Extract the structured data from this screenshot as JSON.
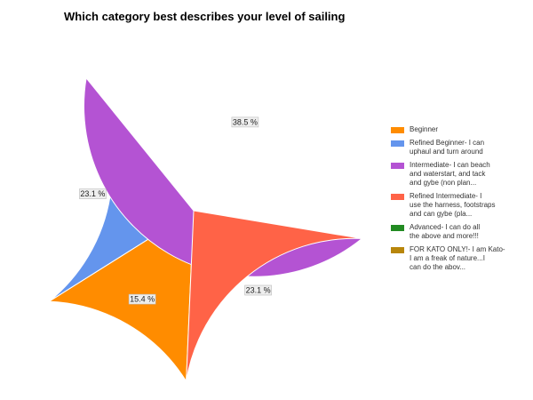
{
  "chart_data": {
    "type": "pie",
    "title": "Which category best describes your level of sailing",
    "categories": [
      "Beginner",
      "Refined Beginner- I can uphaul and turn around",
      "Intermediate- I can beach and waterstart, and tack and gybe (non plan...",
      "Refined Intermediate- I use the harness, footstraps and can gybe (pla...",
      "Advanced- I can do all the above and more!!!",
      "FOR KATO ONLY!- I am Kato- I am a freak of nature...I can do the abov..."
    ],
    "values": [
      15.4,
      23.1,
      38.5,
      23.1,
      0,
      0
    ],
    "value_labels": [
      "15.4 %",
      "23.1 %",
      "38.5 %",
      "23.1 %",
      "",
      ""
    ],
    "colors": [
      "#ff8c00",
      "#6495ed",
      "#b453d3",
      "#ff6347",
      "#228b22",
      "#b8860b"
    ],
    "legend_position": "right"
  },
  "legend": {
    "items": [
      {
        "text": "Beginner",
        "color": "#ff8c00"
      },
      {
        "text": "Refined Beginner- I can\nuphaul and turn around",
        "color": "#6495ed"
      },
      {
        "text": "Intermediate- I can beach\nand waterstart, and tack\nand gybe (non plan...",
        "color": "#b453d3"
      },
      {
        "text": "Refined Intermediate- I\nuse the harness, footstraps\nand can gybe (pla...",
        "color": "#ff6347"
      },
      {
        "text": "Advanced- I can do all\nthe above and more!!!",
        "color": "#228b22"
      },
      {
        "text": "FOR KATO ONLY!- I am Kato-\nI am a freak of nature...I\ncan do the abov...",
        "color": "#b8860b"
      }
    ]
  }
}
